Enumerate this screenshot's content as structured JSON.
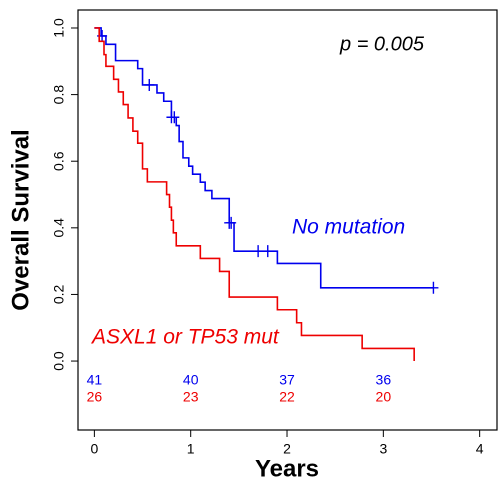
{
  "chart_data": {
    "type": "km",
    "xlabel": "Years",
    "ylabel": "Overall Survival",
    "annotation": "p = 0.005",
    "xlim": [
      -0.17,
      4.18
    ],
    "ylim": [
      -0.207,
      1.054
    ],
    "xticks": [
      0,
      1,
      2,
      3,
      4
    ],
    "yticks": [
      {
        "value": 0,
        "label": "0.0"
      },
      {
        "value": 0.2,
        "label": "0.2"
      },
      {
        "value": 0.4,
        "label": "0.4"
      },
      {
        "value": 0.6,
        "label": "0.6"
      },
      {
        "value": 0.8,
        "label": "0.8"
      },
      {
        "value": 1,
        "label": "1.0"
      }
    ],
    "at_risk_x": [
      0,
      1,
      2,
      3
    ],
    "series": [
      {
        "name": "No mutation",
        "color": "#0000ee",
        "x": [
          0,
          0.07,
          0.12,
          0.22,
          0.45,
          0.5,
          0.65,
          0.72,
          0.8,
          0.85,
          0.88,
          0.92,
          0.98,
          1.02,
          1.1,
          1.15,
          1.22,
          1.4,
          1.45,
          1.9,
          2.35,
          3.52
        ],
        "values": [
          1.0,
          0.976,
          0.951,
          0.902,
          0.878,
          0.829,
          0.805,
          0.78,
          0.732,
          0.707,
          0.659,
          0.61,
          0.585,
          0.561,
          0.537,
          0.512,
          0.488,
          0.415,
          0.33,
          0.293,
          0.22,
          0.22
        ],
        "censored": [
          0.08,
          0.57,
          0.8,
          0.83,
          1.4,
          1.42,
          1.7,
          1.8,
          3.52
        ],
        "at_risk": [
          41,
          40,
          37,
          36
        ]
      },
      {
        "name": "ASXL1 or TP53 mut",
        "color": "#ee0000",
        "x": [
          0,
          0.05,
          0.1,
          0.12,
          0.2,
          0.25,
          0.3,
          0.35,
          0.4,
          0.45,
          0.5,
          0.55,
          0.75,
          0.78,
          0.8,
          0.82,
          0.85,
          1.1,
          1.3,
          1.4,
          1.9,
          2.1,
          2.15,
          2.78,
          3.32
        ],
        "values": [
          1.0,
          0.96,
          0.92,
          0.885,
          0.846,
          0.808,
          0.77,
          0.73,
          0.69,
          0.654,
          0.577,
          0.538,
          0.5,
          0.462,
          0.423,
          0.385,
          0.346,
          0.308,
          0.269,
          0.192,
          0.154,
          0.115,
          0.077,
          0.038,
          0.0
        ],
        "censored": [],
        "at_risk": [
          26,
          23,
          22,
          20
        ]
      }
    ]
  }
}
